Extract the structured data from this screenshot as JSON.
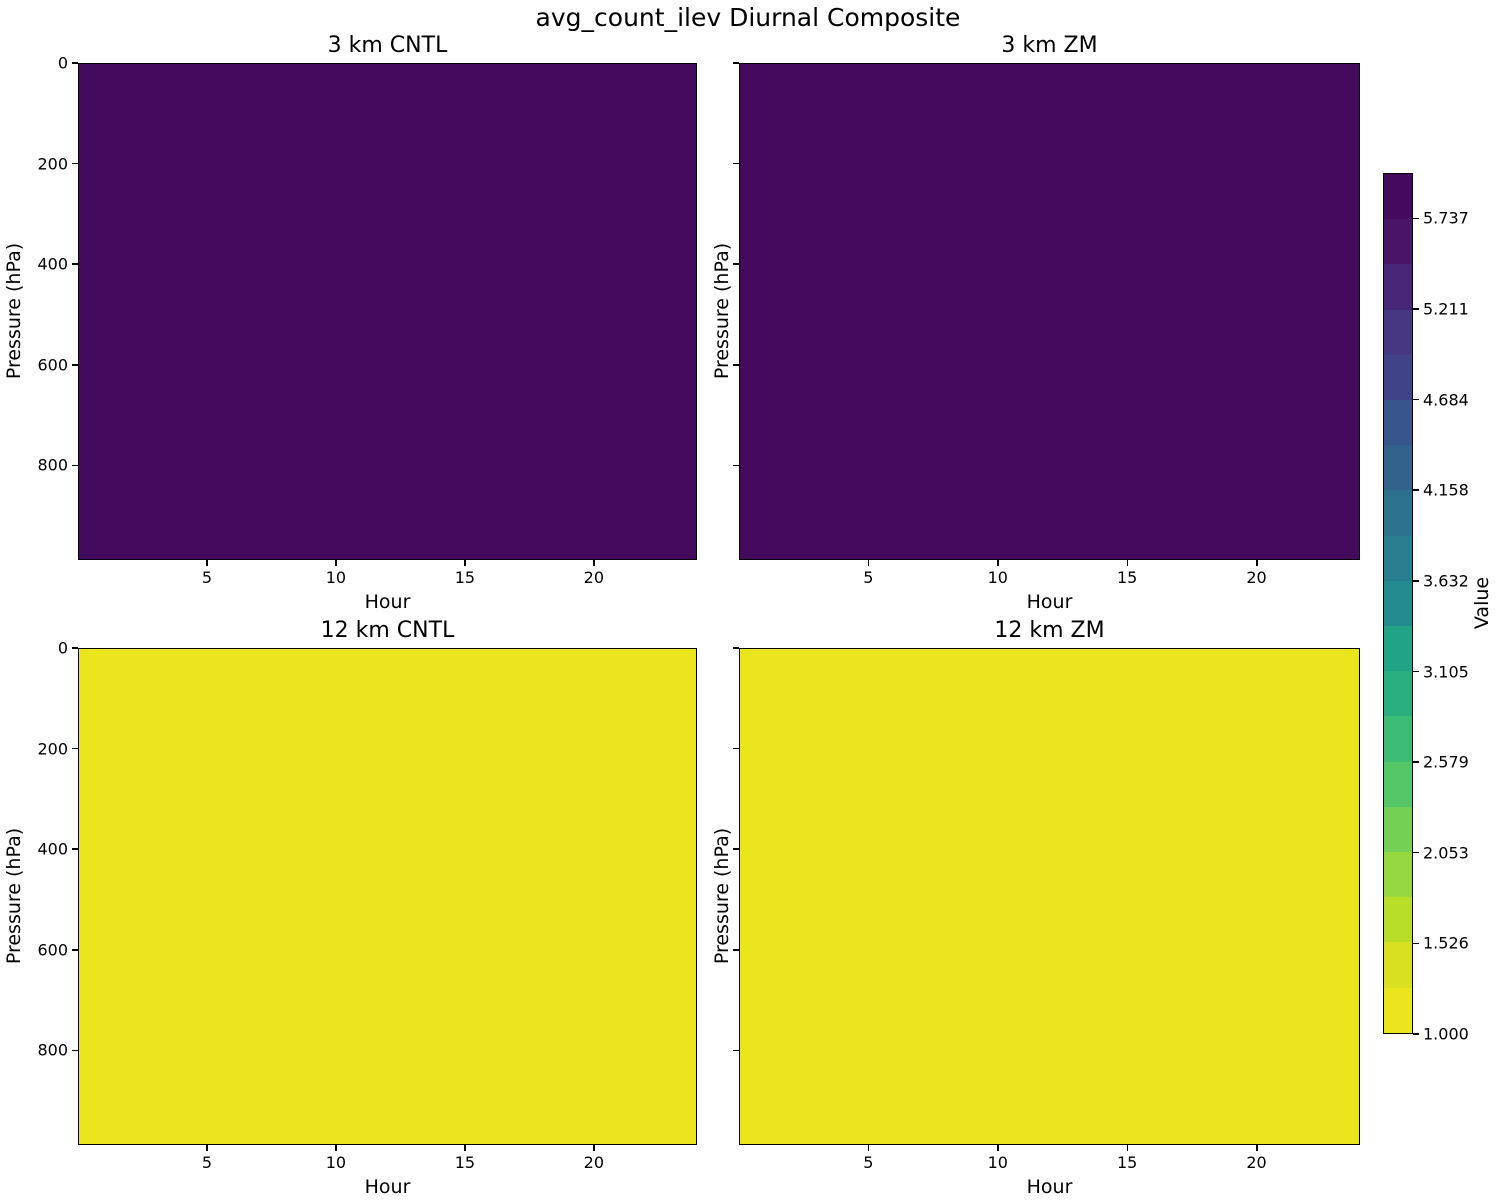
{
  "suptitle": "avg_count_ilev Diurnal Composite",
  "panels": [
    {
      "title": "3 km CNTL",
      "xlabel": "Hour",
      "ylabel": "Pressure (hPa)",
      "fill_color": "#440a5e",
      "uniform_value": 6.0
    },
    {
      "title": "3 km ZM",
      "xlabel": "Hour",
      "ylabel": "Pressure (hPa)",
      "fill_color": "#440a5e",
      "uniform_value": 6.0
    },
    {
      "title": "12 km CNTL",
      "xlabel": "Hour",
      "ylabel": "Pressure (hPa)",
      "fill_color": "#ebe51e",
      "uniform_value": 1.0
    },
    {
      "title": "12 km ZM",
      "xlabel": "Hour",
      "ylabel": "Pressure (hPa)",
      "fill_color": "#ebe51e",
      "uniform_value": 1.0
    }
  ],
  "axes": {
    "x_tick_values": [
      5,
      10,
      15,
      20
    ],
    "x_tick_labels": [
      "5",
      "10",
      "15",
      "20"
    ],
    "x_range": [
      0,
      24
    ],
    "y_tick_values": [
      0,
      200,
      400,
      600,
      800
    ],
    "y_tick_labels": [
      "0",
      "200",
      "400",
      "600",
      "800"
    ],
    "y_range": [
      0,
      988
    ]
  },
  "colorbar": {
    "label": "Value",
    "vmin": 1.0,
    "vmax": 6.0,
    "tick_values": [
      5.737,
      5.211,
      4.684,
      4.158,
      3.632,
      3.105,
      2.579,
      2.053,
      1.526,
      1.0
    ],
    "tick_labels": [
      "5.737",
      "5.211",
      "4.684",
      "4.158",
      "3.632",
      "3.105",
      "2.579",
      "2.053",
      "1.526",
      "1.000"
    ],
    "band_colors_top_to_bottom": [
      "#440a5e",
      "#481567",
      "#482677",
      "#453781",
      "#404387",
      "#39568c",
      "#33638d",
      "#2c718e",
      "#287d8e",
      "#238a8d",
      "#20a386",
      "#29af7f",
      "#3cbb75",
      "#55c667",
      "#73d055",
      "#95d840",
      "#b8de29",
      "#d8e021",
      "#ebe51e"
    ]
  },
  "chart_data": {
    "type": "heatmap",
    "title": "avg_count_ilev Diurnal Composite",
    "layout": "2x2 grid of filled-contour panels sharing one discrete colorbar",
    "panels": [
      {
        "title": "3 km CNTL",
        "xlabel": "Hour",
        "ylabel": "Pressure (hPa)",
        "x_range": [
          0,
          24
        ],
        "y_range_hPa": [
          0,
          988
        ],
        "y_axis_inverted": true,
        "uniform_value": 6.0,
        "fill_color": "#440a5e"
      },
      {
        "title": "3 km ZM",
        "xlabel": "Hour",
        "ylabel": "Pressure (hPa)",
        "x_range": [
          0,
          24
        ],
        "y_range_hPa": [
          0,
          988
        ],
        "y_axis_inverted": true,
        "uniform_value": 6.0,
        "fill_color": "#440a5e"
      },
      {
        "title": "12 km CNTL",
        "xlabel": "Hour",
        "ylabel": "Pressure (hPa)",
        "x_range": [
          0,
          24
        ],
        "y_range_hPa": [
          0,
          988
        ],
        "y_axis_inverted": true,
        "uniform_value": 1.0,
        "fill_color": "#ebe51e"
      },
      {
        "title": "12 km ZM",
        "xlabel": "Hour",
        "ylabel": "Pressure (hPa)",
        "x_range": [
          0,
          24
        ],
        "y_range_hPa": [
          0,
          988
        ],
        "y_axis_inverted": true,
        "uniform_value": 1.0,
        "fill_color": "#ebe51e"
      }
    ],
    "x_ticks": [
      5,
      10,
      15,
      20
    ],
    "y_ticks_hPa": [
      0,
      200,
      400,
      600,
      800
    ],
    "colorbar": {
      "label": "Value",
      "range": [
        1.0,
        6.0
      ],
      "n_bands": 19,
      "ticks": [
        1.0,
        1.526,
        2.053,
        2.579,
        3.105,
        3.632,
        4.158,
        4.684,
        5.211,
        5.737
      ],
      "colormap": "viridis reversed (high values dark purple at top, low values yellow at bottom)"
    }
  }
}
